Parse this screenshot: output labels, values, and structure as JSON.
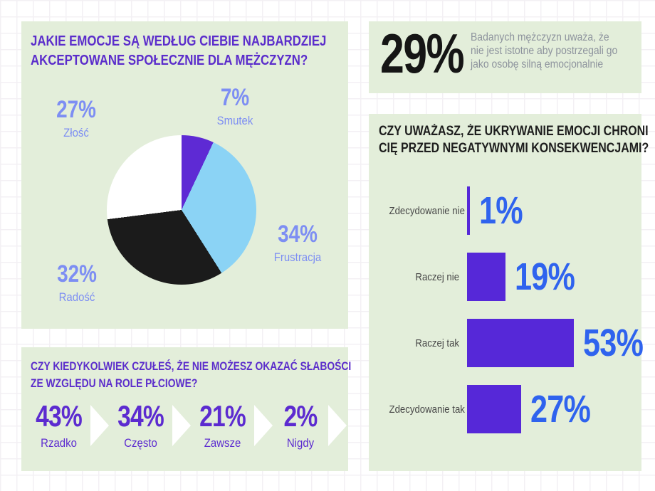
{
  "colors": {
    "panel_bg": "#e3eeda",
    "title_purple": "#5b2dcb",
    "title_black": "#1d1d1d",
    "periwinkle_label": "#7d8ef3",
    "pie_purple": "#5e2ad4",
    "pie_light_blue": "#8bd3f5",
    "pie_black": "#1b1b1b",
    "pie_white": "#ffffff",
    "bar_purple": "#5628d8",
    "percent_blue": "#2f63ee",
    "stat_purple": "#5c2bd0",
    "kpi_black": "#151515",
    "kpi_gray_text": "#8d939d",
    "row_label_gray": "#474747",
    "grid_line": "#f3f0f4"
  },
  "pie_panel": {
    "title_line1": "JAKIE EMOCJE SĄ WEDŁUG CIEBIE NAJBARDZIEJ",
    "title_line2": "AKCEPTOWANE SPOŁECZNIE DLA MĘŻCZYZN?",
    "slices": [
      {
        "label": "Smutek",
        "pct": "7%",
        "value": 7,
        "color": "#5e2ad4"
      },
      {
        "label": "Frustracja",
        "pct": "34%",
        "value": 34,
        "color": "#8bd3f5"
      },
      {
        "label": "Radość",
        "pct": "32%",
        "value": 32,
        "color": "#1b1b1b"
      },
      {
        "label": "Złość",
        "pct": "27%",
        "value": 27,
        "color": "#ffffff"
      }
    ]
  },
  "kpi_panel": {
    "value": "29%",
    "text_line1": "Badanych mężczyzn uważa, że",
    "text_line2": "nie jest istotne aby postrzegali go",
    "text_line3": "jako osobę silną emocjonalnie"
  },
  "bar_panel": {
    "title_line1": "CZY UWAŻASZ, ŻE UKRYWANIE EMOCJI CHRONI",
    "title_line2": "CIĘ PRZED NEGATYWNYMI KONSEKWENCJAMI?",
    "rows": [
      {
        "label": "Zdecydowanie nie",
        "pct": "1%",
        "value": 1
      },
      {
        "label": "Raczej nie",
        "pct": "19%",
        "value": 19
      },
      {
        "label": "Raczej tak",
        "pct": "53%",
        "value": 53
      },
      {
        "label": "Zdecydowanie tak",
        "pct": "27%",
        "value": 27
      }
    ]
  },
  "sequence_panel": {
    "title_line1": "CZY KIEDYKOLWIEK CZUŁEŚ, ŻE NIE MOŻESZ OKAZAĆ SŁABOŚCI",
    "title_line2": "ZE WZGLĘDU NA ROLE PŁCIOWE?",
    "steps": [
      {
        "pct": "43%",
        "label": "Rzadko"
      },
      {
        "pct": "34%",
        "label": "Często"
      },
      {
        "pct": "21%",
        "label": "Zawsze"
      },
      {
        "pct": "2%",
        "label": "Nigdy"
      }
    ]
  },
  "chart_data": [
    {
      "type": "pie",
      "title": "JAKIE EMOCJE SĄ WEDŁUG CIEBIE NAJBARDZIEJ AKCEPTOWANE SPOŁECZNIE DLA MĘŻCZYZN?",
      "labels": [
        "Smutek",
        "Frustracja",
        "Radość",
        "Złość"
      ],
      "values": [
        7,
        34,
        32,
        27
      ],
      "colors": [
        "#5e2ad4",
        "#8bd3f5",
        "#1b1b1b",
        "#ffffff"
      ],
      "start_angle_deg": 0,
      "direction": "clockwise",
      "legend_position": "around"
    },
    {
      "type": "bar",
      "orientation": "horizontal",
      "title": "CZY UWAŻASZ, ŻE UKRYWANIE EMOCJI CHRONI CIĘ PRZED NEGATYWNYMI KONSEKWENCJAMI?",
      "categories": [
        "Zdecydowanie nie",
        "Raczej nie",
        "Raczej tak",
        "Zdecydowanie tak"
      ],
      "values": [
        1,
        19,
        53,
        27
      ],
      "xlim": [
        0,
        100
      ],
      "bar_color": "#5628d8",
      "value_label_color": "#2f63ee",
      "grid": false
    },
    {
      "type": "table",
      "title": "CZY KIEDYKOLWIEK CZUŁEŚ, ŻE NIE MOŻESZ OKAZAĆ SŁABOŚCI ZE WZGLĘDU NA ROLE PŁCIOWE?",
      "categories": [
        "Rzadko",
        "Często",
        "Zawsze",
        "Nigdy"
      ],
      "values": [
        43,
        34,
        21,
        2
      ]
    },
    {
      "type": "table",
      "title": "Badanych mężczyzn uważa, że nie jest istotne aby postrzegali go jako osobę silną emocjonalnie",
      "values": [
        29
      ]
    }
  ]
}
